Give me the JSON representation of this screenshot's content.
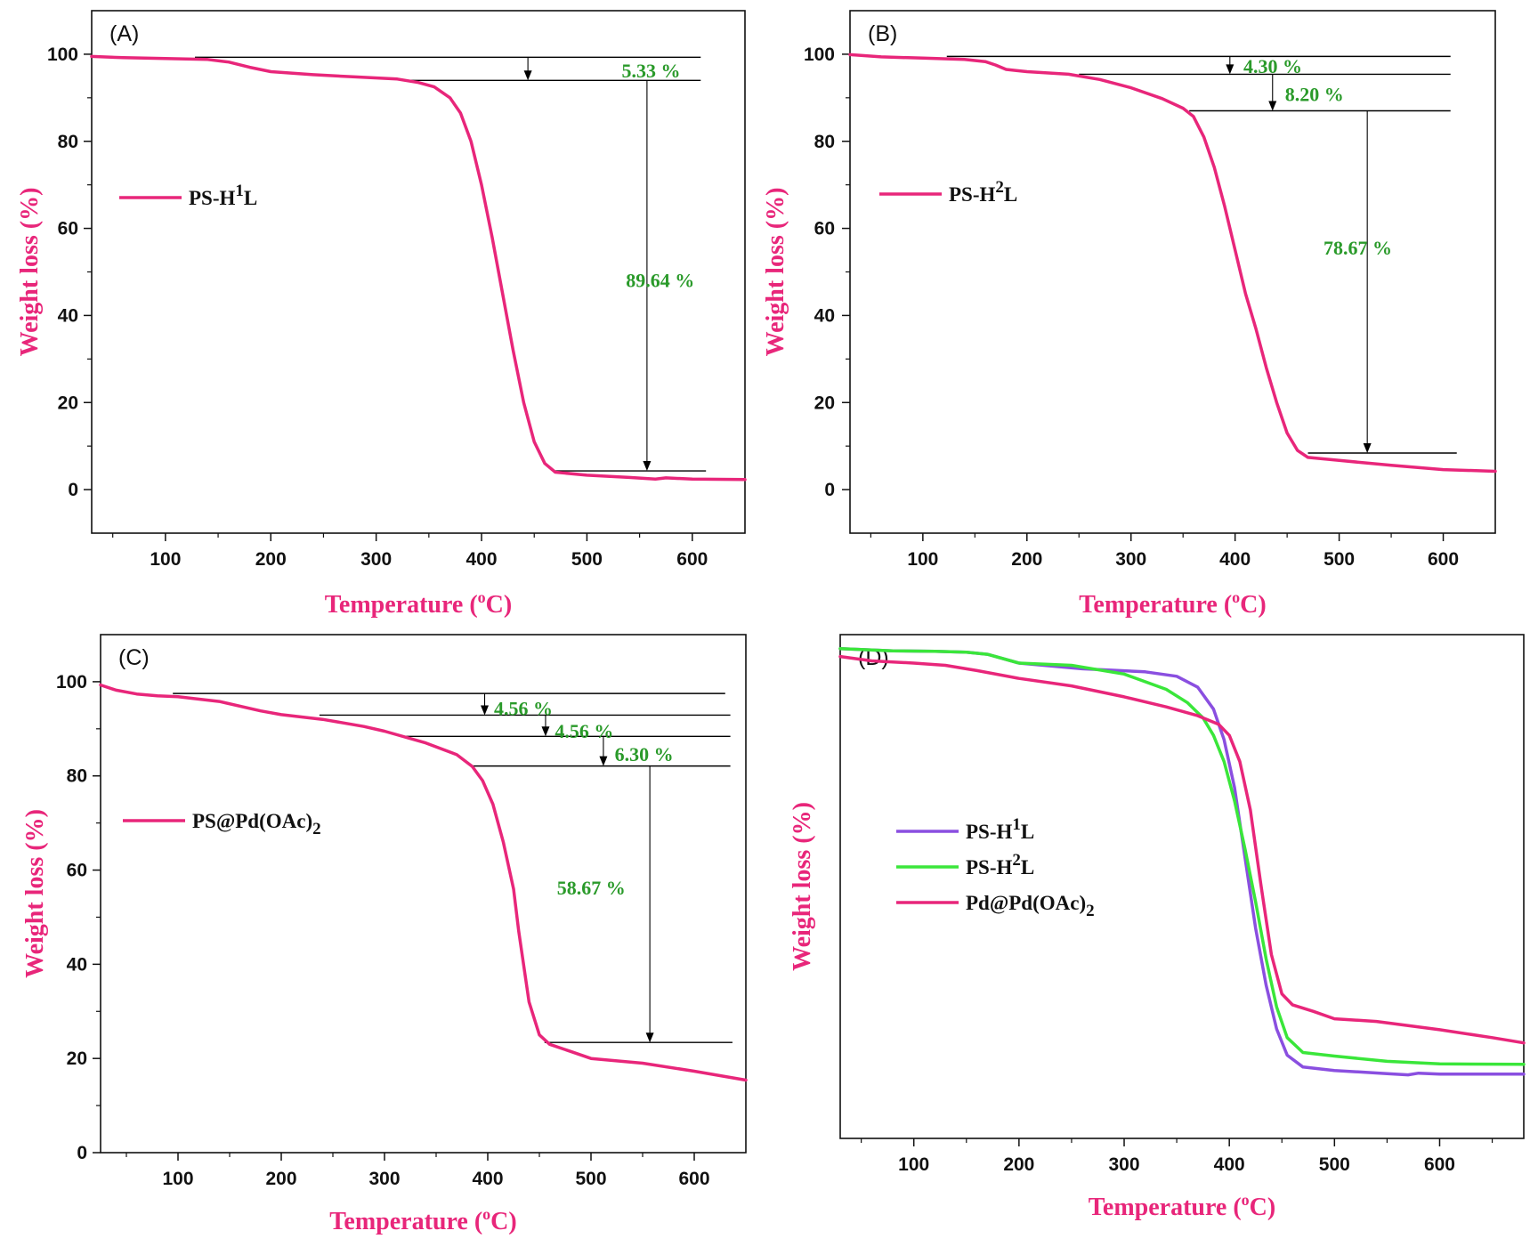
{
  "figure": {
    "colors": {
      "axis_title": "#e8267a",
      "annotation": "#2a9a2a",
      "series_pink": "#e8267a",
      "series_purple": "#8a4fe0",
      "series_green": "#3ae63a",
      "axis": "#111111",
      "guide": "#000000"
    }
  },
  "chart_data": [
    {
      "panel_label": "(A)",
      "type": "line",
      "xlabel": "Temperature",
      "xlabel_sup": "o",
      "xlabel_tail": "C)",
      "xlabel_head": "Temperature (",
      "ylabel": "Weight loss (%)",
      "xlim": [
        30,
        650
      ],
      "ylim": [
        -10,
        110
      ],
      "xticks": [
        "100",
        "200",
        "300",
        "400",
        "500",
        "600"
      ],
      "yticks": [
        "0",
        "20",
        "40",
        "60",
        "80",
        "100"
      ],
      "legend": {
        "position": "middle-left",
        "entries": [
          {
            "base": "PS-H",
            "sup": "1",
            "tail": "L",
            "color_key": "series_pink"
          }
        ]
      },
      "series": [
        {
          "name": "PS-H1L",
          "color_key": "series_pink",
          "x": [
            30,
            60,
            100,
            140,
            160,
            180,
            200,
            240,
            280,
            320,
            340,
            355,
            370,
            380,
            390,
            400,
            410,
            420,
            430,
            440,
            450,
            460,
            470,
            500,
            540,
            565,
            575,
            600,
            650
          ],
          "y": [
            99.5,
            99.2,
            99.0,
            98.8,
            98.2,
            97.0,
            96.0,
            95.3,
            94.8,
            94.3,
            93.5,
            92.5,
            90.0,
            86.5,
            80.0,
            70.0,
            58.0,
            45.0,
            32.0,
            20.0,
            11.0,
            6.0,
            4.0,
            3.3,
            2.8,
            2.4,
            2.7,
            2.4,
            2.3
          ]
        }
      ],
      "guides": [
        {
          "y": 99.3,
          "x1": 128,
          "x2": 608
        },
        {
          "y": 94.0,
          "x1": 325,
          "x2": 608
        },
        {
          "y": 4.3,
          "x1": 470,
          "x2": 613
        }
      ],
      "arrows": [
        {
          "x": 444,
          "y1": 99.3,
          "y2": 94.0
        },
        {
          "x": 557,
          "y1": 94.0,
          "y2": 4.3
        }
      ],
      "annotations": [
        {
          "text": "5.33 %",
          "x": 533,
          "y": 96.3
        },
        {
          "text": "89.64 %",
          "x": 537,
          "y": 48.2
        }
      ]
    },
    {
      "panel_label": "(B)",
      "type": "line",
      "xlabel_head": "Temperature (",
      "xlabel_sup": "o",
      "xlabel_tail": "C)",
      "ylabel": "Weight loss (%)",
      "xlim": [
        30,
        650
      ],
      "ylim": [
        -10,
        110
      ],
      "xticks": [
        "100",
        "200",
        "300",
        "400",
        "500",
        "600"
      ],
      "yticks": [
        "0",
        "20",
        "40",
        "60",
        "80",
        "100"
      ],
      "legend": {
        "position": "middle-left",
        "entries": [
          {
            "base": "PS-H",
            "sup": "2",
            "tail": "L",
            "color_key": "series_pink"
          }
        ]
      },
      "series": [
        {
          "name": "PS-H2L",
          "color_key": "series_pink",
          "x": [
            30,
            60,
            100,
            140,
            160,
            170,
            180,
            200,
            240,
            270,
            300,
            330,
            350,
            360,
            370,
            380,
            390,
            400,
            410,
            420,
            430,
            440,
            450,
            460,
            470,
            500,
            550,
            600,
            650
          ],
          "y": [
            99.9,
            99.4,
            99.1,
            98.8,
            98.3,
            97.5,
            96.5,
            96.0,
            95.4,
            94.2,
            92.3,
            89.8,
            87.6,
            85.7,
            81.0,
            74.0,
            65.0,
            55.0,
            45.0,
            37.0,
            28.0,
            20.0,
            13.0,
            9.0,
            7.4,
            6.7,
            5.6,
            4.6,
            4.2
          ]
        }
      ],
      "guides": [
        {
          "y": 99.5,
          "x1": 123,
          "x2": 607
        },
        {
          "y": 95.4,
          "x1": 250,
          "x2": 607
        },
        {
          "y": 87.0,
          "x1": 356,
          "x2": 607
        },
        {
          "y": 8.4,
          "x1": 470,
          "x2": 613
        }
      ],
      "arrows": [
        {
          "x": 395,
          "y1": 99.5,
          "y2": 95.4
        },
        {
          "x": 436,
          "y1": 95.4,
          "y2": 87.0
        },
        {
          "x": 527,
          "y1": 87.0,
          "y2": 8.4
        }
      ],
      "annotations": [
        {
          "text": "4.30 %",
          "x": 408,
          "y": 97.3
        },
        {
          "text": "8.20 %",
          "x": 448,
          "y": 90.9
        },
        {
          "text": "78.67 %",
          "x": 485,
          "y": 55.6
        }
      ]
    },
    {
      "panel_label": "(C)",
      "type": "line",
      "xlabel_head": "Temperature (",
      "xlabel_sup": "o",
      "xlabel_tail": "C)",
      "ylabel": "Weight loss (%)",
      "xlim": [
        25,
        650
      ],
      "ylim": [
        0,
        110
      ],
      "xticks": [
        "100",
        "200",
        "300",
        "400",
        "500",
        "600"
      ],
      "yticks": [
        "0",
        "20",
        "40",
        "60",
        "80",
        "100"
      ],
      "legend": {
        "position": "middle-left",
        "entries": [
          {
            "base": "PS@Pd(OAc)",
            "sub": "2",
            "color_key": "series_pink"
          }
        ]
      },
      "series": [
        {
          "name": "PS@Pd(OAc)2",
          "color_key": "series_pink",
          "x": [
            25,
            40,
            60,
            80,
            100,
            140,
            180,
            200,
            240,
            280,
            300,
            340,
            370,
            385,
            395,
            405,
            415,
            425,
            430,
            440,
            450,
            460,
            480,
            500,
            550,
            600,
            650
          ],
          "y": [
            99.3,
            98.2,
            97.4,
            97.0,
            96.8,
            95.8,
            93.8,
            93.0,
            92.0,
            90.5,
            89.5,
            87.0,
            84.5,
            82.0,
            79.0,
            74.0,
            66.0,
            56.0,
            47.0,
            32.0,
            25.0,
            23.0,
            21.5,
            20.0,
            19.0,
            17.3,
            15.4
          ]
        }
      ],
      "guides": [
        {
          "y": 97.5,
          "x1": 95,
          "x2": 630
        },
        {
          "y": 92.9,
          "x1": 237,
          "x2": 635
        },
        {
          "y": 88.4,
          "x1": 318,
          "x2": 635
        },
        {
          "y": 82.1,
          "x1": 384,
          "x2": 635
        },
        {
          "y": 23.4,
          "x1": 455,
          "x2": 637
        }
      ],
      "arrows": [
        {
          "x": 397,
          "y1": 97.5,
          "y2": 92.9
        },
        {
          "x": 456,
          "y1": 92.9,
          "y2": 88.4
        },
        {
          "x": 512,
          "y1": 88.4,
          "y2": 82.1
        },
        {
          "x": 557,
          "y1": 82.1,
          "y2": 23.4
        }
      ],
      "annotations": [
        {
          "text": "4.56 %",
          "x": 406,
          "y": 94.4
        },
        {
          "text": "4.56 %",
          "x": 465,
          "y": 89.6
        },
        {
          "text": "6.30 %",
          "x": 523,
          "y": 84.7
        },
        {
          "text": "58.67 %",
          "x": 467,
          "y": 56.3
        }
      ]
    },
    {
      "panel_label": "(D)",
      "type": "line",
      "xlabel_head": "Temperature (",
      "xlabel_sup": "o",
      "xlabel_tail": "C)",
      "ylabel": "Weight loss (%)",
      "xlim": [
        30,
        680
      ],
      "ylim": [
        -12,
        103
      ],
      "xticks": [
        "100",
        "200",
        "300",
        "400",
        "500",
        "600"
      ],
      "yticks": [],
      "legend": {
        "position": "middle-left",
        "entries": [
          {
            "base": "PS-H",
            "sup": "1",
            "tail": "L",
            "color_key": "series_purple"
          },
          {
            "base": "PS-H",
            "sup": "2",
            "tail": "L",
            "color_key": "series_green"
          },
          {
            "base": "Pd@Pd(OAc)",
            "sub": "2",
            "color_key": "series_pink"
          }
        ]
      },
      "series": [
        {
          "name": "PS-H1L",
          "color_key": "series_purple",
          "x": [
            30,
            80,
            120,
            150,
            170,
            200,
            260,
            320,
            350,
            370,
            385,
            395,
            405,
            415,
            425,
            435,
            445,
            455,
            470,
            500,
            550,
            570,
            580,
            600,
            680
          ],
          "y": [
            99.8,
            99.3,
            99.2,
            99.0,
            98.5,
            96.5,
            95.2,
            94.5,
            93.5,
            91.0,
            86.0,
            79.0,
            68.0,
            52.0,
            36.0,
            23.0,
            13.0,
            7.0,
            4.3,
            3.5,
            2.8,
            2.5,
            2.9,
            2.7,
            2.7
          ]
        },
        {
          "name": "PS-H2L",
          "color_key": "series_green",
          "x": [
            30,
            80,
            120,
            150,
            170,
            200,
            250,
            300,
            340,
            360,
            375,
            385,
            395,
            405,
            415,
            425,
            435,
            445,
            455,
            470,
            500,
            550,
            600,
            680
          ],
          "y": [
            99.8,
            99.3,
            99.2,
            99.0,
            98.5,
            96.5,
            96.0,
            94.0,
            90.5,
            87.5,
            84.0,
            80.0,
            74.0,
            65.0,
            54.0,
            42.0,
            29.0,
            18.0,
            11.0,
            7.6,
            6.8,
            5.6,
            5.0,
            4.9
          ]
        },
        {
          "name": "Pd@Pd(OAc)2",
          "color_key": "series_pink",
          "x": [
            30,
            60,
            100,
            130,
            160,
            200,
            250,
            300,
            340,
            370,
            390,
            400,
            410,
            420,
            430,
            440,
            450,
            460,
            480,
            500,
            540,
            600,
            650,
            680
          ],
          "y": [
            98.0,
            97.0,
            96.5,
            96.0,
            94.8,
            93.0,
            91.3,
            88.8,
            86.5,
            84.5,
            82.5,
            80.0,
            74.0,
            63.0,
            46.0,
            30.0,
            21.0,
            18.5,
            17.0,
            15.3,
            14.7,
            12.8,
            11.0,
            9.8
          ]
        }
      ]
    }
  ]
}
